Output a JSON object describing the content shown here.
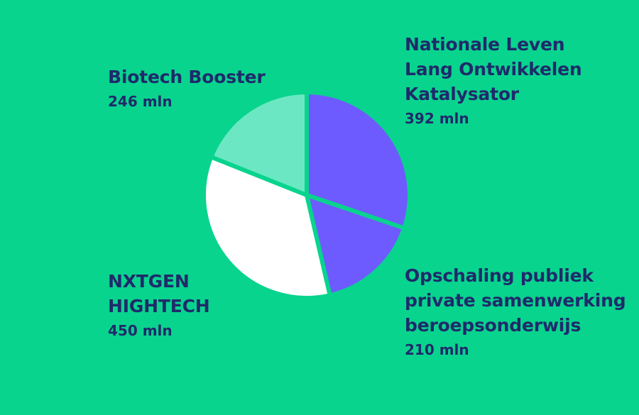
{
  "chart_data": {
    "type": "pie",
    "unit": "mln",
    "slices": [
      {
        "name": "Nationale Leven Lang Ontwikkelen Katalysator",
        "name_lines": [
          "Nationale Leven",
          "Lang Ontwikkelen",
          "Katalysator"
        ],
        "value": 392,
        "value_label": "392 mln",
        "color": "#6D5BFF"
      },
      {
        "name": "Opschaling publiek private samenwerking beroepsonderwijs",
        "name_lines": [
          "Opschaling publiek",
          "private samenwerking",
          "beroepsonderwijs"
        ],
        "value": 210,
        "value_label": "210 mln",
        "color": "#6D5BFF"
      },
      {
        "name": "NXTGEN HIGHTECH",
        "name_lines": [
          "NXTGEN",
          "HIGHTECH"
        ],
        "value": 450,
        "value_label": "450 mln",
        "color": "#FFFFFF"
      },
      {
        "name": "Biotech Booster",
        "name_lines": [
          "Biotech Booster"
        ],
        "value": 246,
        "value_label": "246 mln",
        "color": "#6BE8C3"
      }
    ],
    "start_angle": "12 o'clock",
    "direction": "clockwise"
  },
  "colors": {
    "background": "#08D48E",
    "text": "#1F2A6B"
  }
}
